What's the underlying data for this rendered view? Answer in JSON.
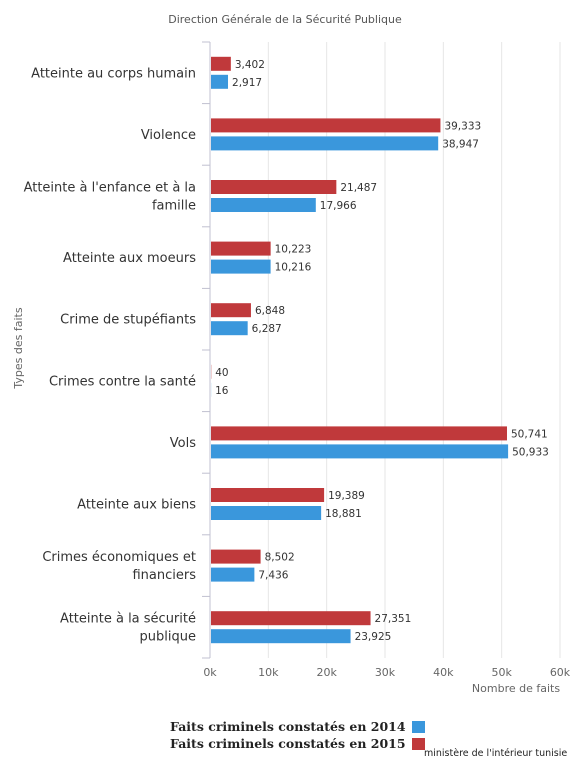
{
  "chart_data": {
    "type": "bar",
    "orientation": "horizontal",
    "title": "Direction Générale de la Sécurité Publique",
    "xlabel": "Nombre de faits",
    "ylabel": "Types des faits",
    "xlim": [
      0,
      60000
    ],
    "xticks": [
      "0k",
      "10k",
      "20k",
      "30k",
      "40k",
      "50k",
      "60k"
    ],
    "grid": true,
    "legend_position": "bottom",
    "categories": [
      [
        "Atteinte au corps humain"
      ],
      [
        "Violence"
      ],
      [
        "Atteinte à l'enfance et à la",
        "famille"
      ],
      [
        "Atteinte aux moeurs"
      ],
      [
        "Crime de stupéfiants"
      ],
      [
        "Crimes contre la santé"
      ],
      [
        "Vols"
      ],
      [
        "Atteinte aux biens"
      ],
      [
        "Crimes économiques et",
        "financiers"
      ],
      [
        "Atteinte à la sécurité",
        "publique"
      ]
    ],
    "series": [
      {
        "name": "Faits criminels constatés en 2015",
        "color": "#c0393b",
        "values": [
          3402,
          39333,
          21487,
          10223,
          6848,
          40,
          50741,
          19389,
          8502,
          27351
        ],
        "labels": [
          "3,402",
          "39,333",
          "21,487",
          "10,223",
          "6,848",
          "40",
          "50,741",
          "19,389",
          "8,502",
          "27,351"
        ]
      },
      {
        "name": "Faits criminels constatés en 2014",
        "color": "#3a97dc",
        "values": [
          2917,
          38947,
          17966,
          10216,
          6287,
          16,
          50933,
          18881,
          7436,
          23925
        ],
        "labels": [
          "2,917",
          "38,947",
          "17,966",
          "10,216",
          "6,287",
          "16",
          "50,933",
          "18,881",
          "7,436",
          "23,925"
        ]
      }
    ]
  },
  "legend": [
    {
      "label": "Faits criminels constatés en 2014",
      "color": "#3a97dc"
    },
    {
      "label": "Faits criminels constatés en 2015",
      "color": "#c0393b"
    }
  ],
  "credit": "ministère de l'intérieur tunisie"
}
